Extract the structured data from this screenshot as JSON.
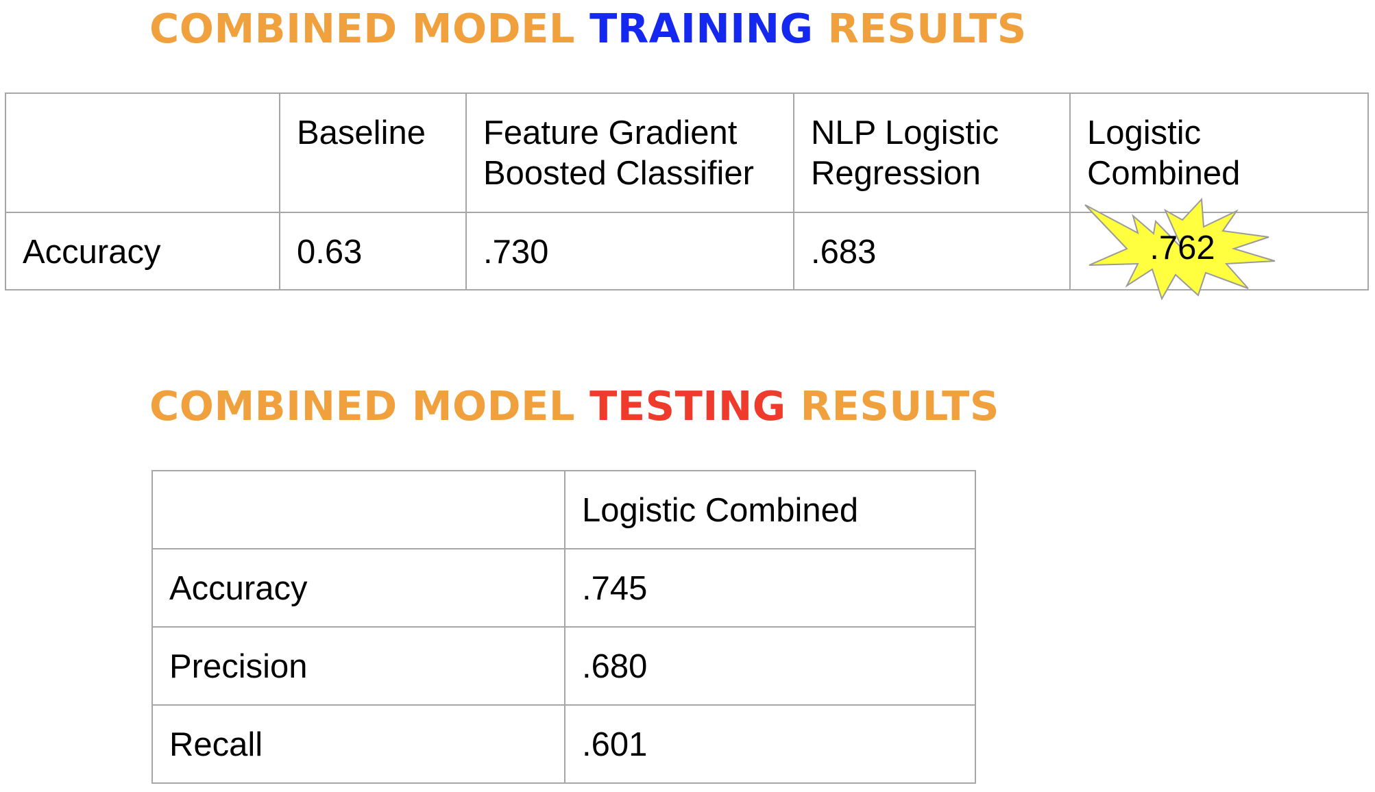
{
  "training": {
    "title_part1": "COMBINED MODEL ",
    "title_part2": "TRAINING",
    "title_part3": " RESULTS",
    "headers": [
      "",
      "Baseline",
      "Feature Gradient Boosted Classifier",
      "NLP Logistic Regression",
      "Logistic Combined"
    ],
    "rows": [
      {
        "label": "Accuracy",
        "values": [
          "0.63",
          ".730",
          ".683",
          ".762"
        ]
      }
    ]
  },
  "testing": {
    "title_part1": "COMBINED MODEL ",
    "title_part2": "TESTING",
    "title_part3": " RESULTS",
    "headers": [
      "",
      "Logistic Combined"
    ],
    "rows": [
      {
        "label": "Accuracy",
        "value": ".745"
      },
      {
        "label": "Precision",
        "value": ".680"
      },
      {
        "label": "Recall",
        "value": ".601"
      }
    ]
  },
  "colors": {
    "title_orange": "#F0A03C",
    "training_blue": "#1428F0",
    "testing_red": "#EE3B2B",
    "highlight_yellow": "#FFFF40",
    "border_gray": "#A6A6A6"
  },
  "highlight": {
    "shape": "starburst",
    "target": "training.rows.0.values.3"
  }
}
